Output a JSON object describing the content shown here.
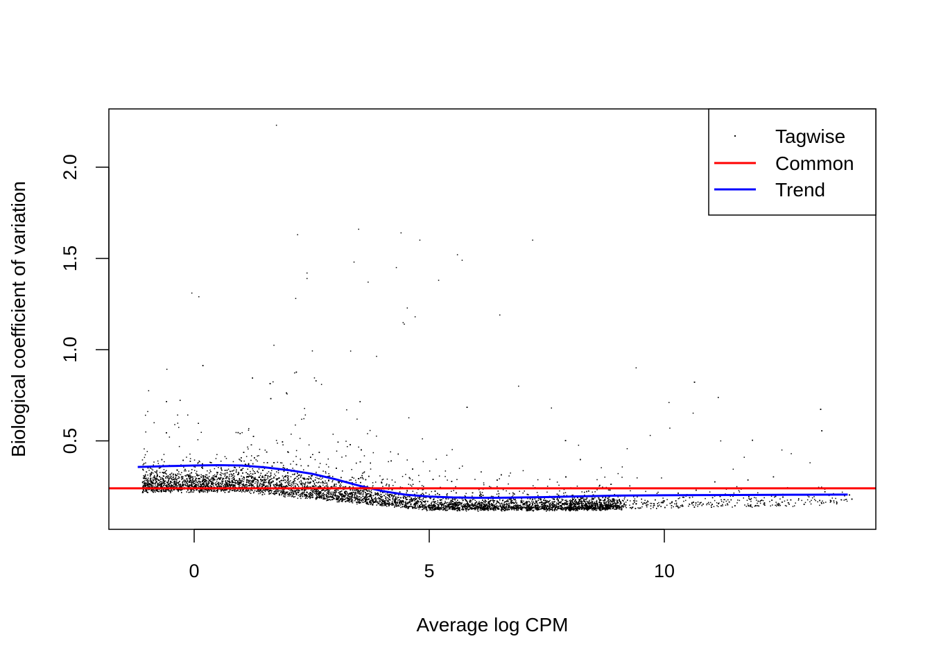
{
  "chart_data": {
    "type": "scatter",
    "title": "",
    "xlabel": "Average log CPM",
    "ylabel": "Biological coefficient of variation",
    "xlim": [
      -1.8,
      14.5
    ],
    "ylim": [
      0.015,
      2.32
    ],
    "xticks": [
      0,
      5,
      10
    ],
    "xtick_labels": [
      "0",
      "5",
      "10"
    ],
    "yticks": [
      0.5,
      1.0,
      1.5,
      2.0
    ],
    "ytick_labels": [
      "0.5",
      "1.0",
      "1.5",
      "2.0"
    ],
    "grid": false,
    "legend": {
      "position": "top-right",
      "entries": [
        {
          "label": "Tagwise",
          "type": "point",
          "color": "#000000"
        },
        {
          "label": "Common",
          "type": "line",
          "color": "#ff0000"
        },
        {
          "label": "Trend",
          "type": "line",
          "color": "#0000ff"
        }
      ]
    },
    "series": [
      {
        "name": "Common",
        "type": "hline",
        "color": "#ff0000",
        "value": 0.24
      },
      {
        "name": "Trend",
        "type": "line",
        "color": "#0000ff",
        "x": [
          -1.2,
          -0.5,
          0,
          0.5,
          1.0,
          1.5,
          2.0,
          2.5,
          3.0,
          3.5,
          4.0,
          4.5,
          5.0,
          5.5,
          6.0,
          6.5,
          7.0,
          7.5,
          8.0,
          9.0,
          10.0,
          11.0,
          12.0,
          13.0,
          13.9
        ],
        "y": [
          0.357,
          0.362,
          0.365,
          0.367,
          0.365,
          0.355,
          0.34,
          0.32,
          0.29,
          0.255,
          0.225,
          0.205,
          0.195,
          0.19,
          0.188,
          0.188,
          0.19,
          0.192,
          0.195,
          0.2,
          0.202,
          0.203,
          0.204,
          0.205,
          0.206
        ]
      },
      {
        "name": "Tagwise",
        "type": "scatter",
        "color": "#000000",
        "notable_points": [
          [
            1.75,
            2.23
          ],
          [
            2.2,
            1.63
          ],
          [
            3.5,
            1.66
          ],
          [
            4.4,
            1.64
          ],
          [
            4.8,
            1.6
          ],
          [
            7.2,
            1.6
          ],
          [
            5.6,
            1.52
          ],
          [
            5.7,
            1.49
          ],
          [
            3.4,
            1.48
          ],
          [
            4.3,
            1.45
          ],
          [
            2.4,
            1.42
          ],
          [
            2.4,
            1.39
          ],
          [
            5.2,
            1.38
          ],
          [
            3.7,
            1.37
          ],
          [
            -0.05,
            1.31
          ],
          [
            0.1,
            1.29
          ],
          [
            9.4,
            0.9
          ],
          [
            10.1,
            0.71
          ],
          [
            6.5,
            1.19
          ],
          [
            4.7,
            1.18
          ],
          [
            12.5,
            0.45
          ],
          [
            12.7,
            0.43
          ],
          [
            11.7,
            0.41
          ],
          [
            13.1,
            0.38
          ],
          [
            11.2,
            0.5
          ],
          [
            9.7,
            0.53
          ],
          [
            7.6,
            0.68
          ],
          [
            6.9,
            0.8
          ]
        ]
      }
    ]
  }
}
